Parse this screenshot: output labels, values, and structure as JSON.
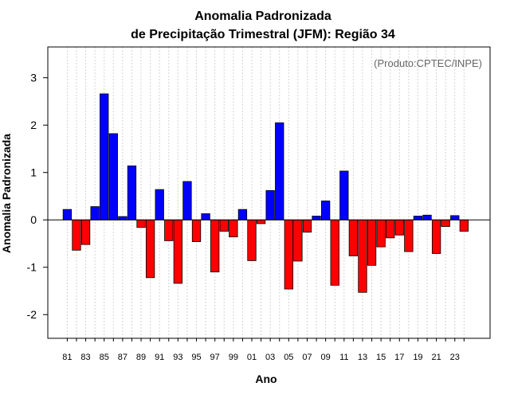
{
  "chart_data": {
    "type": "bar",
    "title": "Anomalia Padronizada",
    "subtitle": "de Precipitação Trimestral (JFM): Região 34",
    "xlabel": "Ano",
    "ylabel": "Anomalia Padronizada",
    "annotation": "(Produto:CPTEC/INPE)",
    "ylim": [
      -2.5,
      3.65
    ],
    "yticks": [
      -2,
      -1,
      0,
      1,
      2,
      3
    ],
    "ytick_labels": [
      "-2",
      "-1",
      "0",
      "1",
      "2",
      "3"
    ],
    "x": [
      1981,
      1982,
      1983,
      1984,
      1985,
      1986,
      1987,
      1988,
      1989,
      1990,
      1991,
      1992,
      1993,
      1994,
      1995,
      1996,
      1997,
      1998,
      1999,
      2000,
      2001,
      2002,
      2003,
      2004,
      2005,
      2006,
      2007,
      2008,
      2009,
      2010,
      2011,
      2012,
      2013,
      2014,
      2015,
      2016,
      2017,
      2018,
      2019,
      2020,
      2021,
      2022,
      2023,
      2024
    ],
    "xtick_labels": [
      "81",
      "83",
      "85",
      "87",
      "89",
      "91",
      "93",
      "95",
      "97",
      "99",
      "01",
      "03",
      "05",
      "07",
      "09",
      "11",
      "13",
      "15",
      "17",
      "19",
      "21",
      "23"
    ],
    "xtick_years": [
      1981,
      1983,
      1985,
      1987,
      1989,
      1991,
      1993,
      1995,
      1997,
      1999,
      2001,
      2003,
      2005,
      2007,
      2009,
      2011,
      2013,
      2015,
      2017,
      2019,
      2021,
      2023
    ],
    "values": [
      0.22,
      -0.64,
      -0.52,
      0.28,
      2.66,
      1.82,
      0.07,
      1.14,
      -0.16,
      -1.22,
      0.64,
      -0.44,
      -1.34,
      0.81,
      -0.46,
      0.13,
      -1.1,
      -0.24,
      -0.36,
      0.22,
      -0.86,
      -0.08,
      0.62,
      2.05,
      -1.46,
      -0.87,
      -0.26,
      0.08,
      0.4,
      -1.38,
      1.03,
      -0.76,
      -1.53,
      -0.96,
      -0.57,
      -0.38,
      -0.32,
      -0.67,
      0.08,
      0.1,
      -0.71,
      -0.14,
      0.09,
      -0.24
    ],
    "grid": "vertical dotted",
    "colors": {
      "positive": "#0000ff",
      "negative": "#ff0000",
      "border": "#000000",
      "grid": "#d3d3d3"
    }
  }
}
